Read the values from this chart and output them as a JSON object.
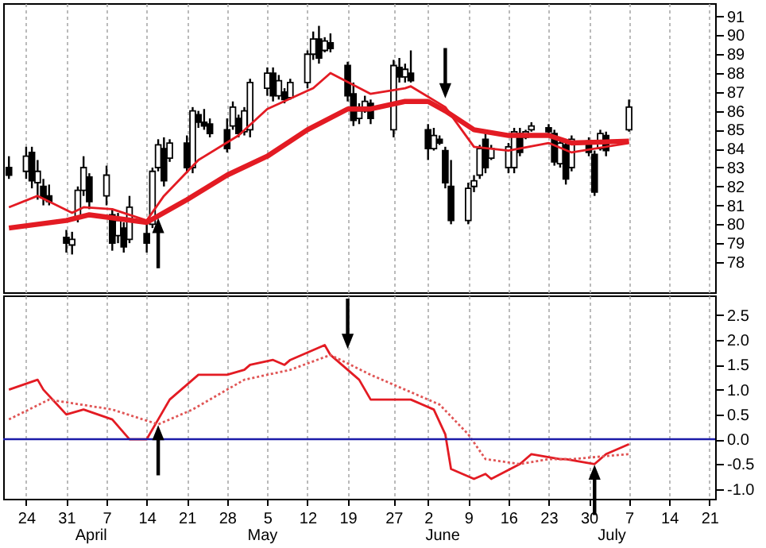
{
  "chart_data": [
    {
      "type": "candlestick",
      "x": [
        "--03-21",
        "--03-24",
        "--03-25",
        "--03-26",
        "--03-27",
        "--03-28",
        "--03-31",
        "--04-01",
        "--04-02",
        "--04-03",
        "--04-04",
        "--04-07",
        "--04-08",
        "--04-09",
        "--04-10",
        "--04-11",
        "--04-14",
        "--04-15",
        "--04-16",
        "--04-17",
        "--04-18",
        "--04-21",
        "--04-22",
        "--04-23",
        "--04-24",
        "--04-25",
        "--04-28",
        "--04-29",
        "--04-30",
        "--05-01",
        "--05-02",
        "--05-05",
        "--05-06",
        "--05-07",
        "--05-08",
        "--05-09",
        "--05-12",
        "--05-13",
        "--05-14",
        "--05-15",
        "--05-16",
        "--05-19",
        "--05-20",
        "--05-21",
        "--05-22",
        "--05-23",
        "--05-27",
        "--05-28",
        "--05-29",
        "--05-30",
        "--06-02",
        "--06-03",
        "--06-04",
        "--06-05",
        "--06-06",
        "--06-09",
        "--06-10",
        "--06-11",
        "--06-12",
        "--06-13",
        "--06-16",
        "--06-17",
        "--06-18",
        "--06-19",
        "--06-20",
        "--06-23",
        "--06-24",
        "--06-25",
        "--06-26",
        "--06-27",
        "--06-30",
        "--07-01",
        "--07-02",
        "--07-03",
        "--07-07"
      ],
      "ohlc": [
        [
          83.0,
          83.6,
          82.4,
          82.6
        ],
        [
          82.8,
          84.1,
          82.4,
          83.6
        ],
        [
          83.8,
          84.1,
          81.9,
          82.3
        ],
        [
          82.2,
          83.4,
          81.3,
          82.8
        ],
        [
          82.0,
          82.4,
          81.0,
          81.4
        ],
        [
          81.5,
          82.1,
          81.0,
          81.2
        ],
        [
          79.3,
          79.7,
          78.5,
          79.0
        ],
        [
          78.9,
          79.6,
          78.4,
          79.2
        ],
        [
          80.4,
          82.0,
          80.1,
          81.8
        ],
        [
          81.8,
          83.6,
          81.5,
          83.0
        ],
        [
          82.5,
          82.7,
          80.8,
          81.2
        ],
        [
          81.5,
          83.1,
          81.0,
          82.6
        ],
        [
          80.5,
          80.8,
          78.6,
          79.0
        ],
        [
          79.4,
          80.6,
          79.0,
          80.2
        ],
        [
          79.8,
          80.1,
          78.5,
          78.8
        ],
        [
          79.2,
          81.5,
          79.0,
          80.9
        ],
        [
          79.5,
          80.0,
          78.5,
          79.0
        ],
        [
          80.0,
          83.0,
          79.8,
          82.8
        ],
        [
          83.0,
          84.5,
          82.8,
          84.2
        ],
        [
          84.0,
          84.6,
          82.0,
          82.3
        ],
        [
          83.5,
          84.5,
          83.3,
          84.3
        ],
        [
          84.3,
          84.7,
          82.7,
          83.0
        ],
        [
          83.0,
          86.2,
          82.7,
          86.0
        ],
        [
          85.8,
          86.0,
          85.1,
          85.4
        ],
        [
          85.4,
          86.1,
          85.0,
          85.2
        ],
        [
          85.3,
          85.6,
          84.6,
          84.8
        ],
        [
          85.0,
          85.6,
          83.8,
          84.0
        ],
        [
          85.2,
          86.5,
          85.0,
          86.2
        ],
        [
          85.6,
          85.8,
          84.6,
          84.8
        ],
        [
          84.9,
          86.2,
          84.7,
          86.0
        ],
        [
          85.0,
          87.7,
          84.6,
          87.5
        ],
        [
          87.2,
          88.3,
          86.8,
          88.0
        ],
        [
          88.0,
          88.3,
          86.5,
          86.8
        ],
        [
          86.8,
          87.9,
          86.6,
          87.6
        ],
        [
          87.0,
          87.2,
          86.4,
          86.6
        ],
        [
          86.7,
          87.7,
          86.6,
          87.5
        ],
        [
          87.5,
          89.2,
          87.2,
          89.0
        ],
        [
          89.0,
          90.2,
          88.7,
          89.8
        ],
        [
          89.8,
          90.5,
          88.5,
          88.8
        ],
        [
          89.2,
          89.9,
          89.1,
          89.7
        ],
        [
          89.6,
          90.1,
          89.1,
          89.3
        ],
        [
          88.4,
          88.6,
          86.5,
          86.8
        ],
        [
          86.9,
          87.5,
          85.2,
          85.5
        ],
        [
          85.6,
          86.4,
          85.3,
          86.0
        ],
        [
          86.0,
          86.8,
          85.9,
          86.5
        ],
        [
          86.4,
          86.6,
          85.3,
          85.6
        ],
        [
          85.0,
          88.7,
          84.6,
          88.4
        ],
        [
          88.3,
          88.8,
          87.5,
          87.8
        ],
        [
          87.8,
          88.5,
          87.5,
          88.2
        ],
        [
          88.0,
          89.2,
          87.5,
          87.6
        ],
        [
          85.0,
          85.3,
          83.4,
          84.0
        ],
        [
          84.0,
          85.1,
          83.9,
          84.7
        ],
        [
          84.5,
          84.7,
          84.2,
          84.3
        ],
        [
          83.9,
          84.1,
          81.9,
          82.2
        ],
        [
          82.0,
          83.4,
          80.0,
          80.2
        ],
        [
          80.2,
          82.2,
          80.0,
          81.9
        ],
        [
          82.0,
          82.6,
          81.7,
          82.3
        ],
        [
          82.6,
          84.2,
          82.4,
          84.0
        ],
        [
          84.5,
          84.9,
          82.7,
          83.0
        ],
        [
          83.5,
          84.2,
          83.4,
          84.0
        ],
        [
          83.0,
          84.3,
          82.7,
          84.1
        ],
        [
          83.0,
          85.1,
          82.7,
          84.9
        ],
        [
          84.8,
          85.1,
          83.6,
          83.8
        ],
        [
          84.6,
          85.0,
          84.5,
          84.9
        ],
        [
          85.0,
          85.4,
          84.9,
          85.2
        ],
        [
          85.1,
          85.3,
          84.7,
          84.9
        ],
        [
          84.8,
          85.0,
          83.1,
          83.3
        ],
        [
          83.2,
          84.5,
          83.0,
          84.3
        ],
        [
          84.2,
          84.5,
          82.1,
          82.4
        ],
        [
          83.0,
          84.7,
          82.8,
          84.5
        ],
        [
          84.4,
          84.6,
          83.6,
          83.8
        ],
        [
          83.7,
          83.9,
          81.5,
          81.7
        ],
        [
          84.0,
          85.0,
          83.9,
          84.8
        ],
        [
          84.7,
          84.9,
          83.6,
          83.9
        ],
        [
          85.0,
          86.6,
          84.9,
          86.2
        ]
      ],
      "series": [
        {
          "type": "line",
          "color": "#e31b23",
          "x": [
            "--03-21",
            "--03-26",
            "--03-28",
            "--04-01",
            "--04-03",
            "--04-08",
            "--04-14",
            "--04-17",
            "--04-23",
            "--04-30",
            "--05-05",
            "--05-13",
            "--05-16",
            "--05-23",
            "--05-29",
            "--05-30",
            "--06-05",
            "--06-10",
            "--06-16",
            "--06-23",
            "--06-27",
            "--07-07"
          ],
          "values": [
            80.9,
            81.5,
            81.2,
            80.6,
            80.9,
            80.8,
            80.2,
            81.5,
            83.4,
            84.7,
            86.1,
            87.2,
            88.0,
            86.9,
            87.2,
            87.3,
            86.2,
            84.1,
            83.9,
            84.3,
            83.8,
            84.3
          ]
        },
        {
          "type": "line",
          "color": "#e31b23",
          "x": [
            "--03-21",
            "--03-31",
            "--04-04",
            "--04-14",
            "--04-21",
            "--04-28",
            "--05-05",
            "--05-12",
            "--05-19",
            "--05-23",
            "--05-29",
            "--06-02",
            "--06-05",
            "--06-10",
            "--06-16",
            "--06-23",
            "--06-27",
            "--07-07"
          ],
          "values": [
            79.8,
            80.2,
            80.5,
            80.1,
            81.3,
            82.6,
            83.6,
            85.0,
            86.1,
            86.1,
            86.5,
            86.5,
            86.0,
            85.0,
            84.7,
            84.7,
            84.3,
            84.4
          ]
        }
      ],
      "xlim": [
        "--03-20",
        "--07-22"
      ],
      "xticks": [
        "--03-24",
        "--03-31",
        "--04-07",
        "--04-14",
        "--04-21",
        "--04-28",
        "--05-05",
        "--05-12",
        "--05-19",
        "--05-27",
        "--06-02",
        "--06-09",
        "--06-16",
        "--06-23",
        "--06-30",
        "--07-07",
        "--07-14",
        "--07-21"
      ],
      "ylim": [
        76.4,
        91.7
      ],
      "yticks": [
        78,
        79,
        80,
        81,
        82,
        83,
        84,
        85,
        86,
        87,
        88,
        89,
        90,
        91
      ],
      "grid": "x",
      "tick_labels": "y"
    },
    {
      "type": "line",
      "series": [
        {
          "color": "#e31b23",
          "line_style": "solid",
          "x": [
            "--03-21",
            "--03-26",
            "--03-27",
            "--03-31",
            "--04-03",
            "--04-08",
            "--04-11",
            "--04-14",
            "--04-16",
            "--04-18",
            "--04-23",
            "--04-28",
            "--05-01",
            "--05-02",
            "--05-06",
            "--05-08",
            "--05-09",
            "--05-13",
            "--05-15",
            "--05-16",
            "--05-21",
            "--05-23",
            "--05-29",
            "--05-30",
            "--06-03",
            "--06-05",
            "--06-06",
            "--06-10",
            "--06-12",
            "--06-13",
            "--06-18",
            "--06-20",
            "--06-25",
            "--06-26",
            "--07-01",
            "--07-03",
            "--07-07"
          ],
          "values": [
            1.0,
            1.2,
            1.0,
            0.5,
            0.6,
            0.4,
            0.0,
            0.0,
            0.4,
            0.8,
            1.3,
            1.3,
            1.4,
            1.5,
            1.6,
            1.5,
            1.6,
            1.8,
            1.9,
            1.7,
            1.2,
            0.8,
            0.8,
            0.8,
            0.6,
            0.1,
            -0.6,
            -0.8,
            -0.7,
            -0.8,
            -0.5,
            -0.3,
            -0.4,
            -0.4,
            -0.5,
            -0.3,
            -0.1
          ]
        },
        {
          "color": "#e05555",
          "line_style": "dotted",
          "x": [
            "--03-21",
            "--03-28",
            "--04-08",
            "--04-16",
            "--04-22",
            "--05-01",
            "--05-09",
            "--05-16",
            "--05-23",
            "--05-29",
            "--06-04",
            "--06-09",
            "--06-12",
            "--06-18",
            "--06-23",
            "--06-27",
            "--07-07"
          ],
          "values": [
            0.4,
            0.8,
            0.6,
            0.3,
            0.6,
            1.2,
            1.4,
            1.7,
            1.3,
            1.0,
            0.7,
            0.1,
            -0.4,
            -0.5,
            -0.4,
            -0.4,
            -0.3
          ]
        }
      ],
      "xlim": [
        "--03-20",
        "--07-22"
      ],
      "xticks": [
        {
          "value": "--03-24",
          "label": "24"
        },
        {
          "value": "--03-31",
          "label": "31"
        },
        {
          "value": "--04-07",
          "label": "7"
        },
        {
          "value": "--04-14",
          "label": "14"
        },
        {
          "value": "--04-21",
          "label": "21"
        },
        {
          "value": "--04-28",
          "label": "28"
        },
        {
          "value": "--05-05",
          "label": "5"
        },
        {
          "value": "--05-12",
          "label": "12"
        },
        {
          "value": "--05-19",
          "label": "19"
        },
        {
          "value": "--05-27",
          "label": "27"
        },
        {
          "value": "--06-02",
          "label": "2"
        },
        {
          "value": "--06-09",
          "label": "9"
        },
        {
          "value": "--06-16",
          "label": "16"
        },
        {
          "value": "--06-23",
          "label": "23"
        },
        {
          "value": "--06-30",
          "label": "30"
        },
        {
          "value": "--07-07",
          "label": "7"
        },
        {
          "value": "--07-14",
          "label": "14"
        },
        {
          "value": "--07-21",
          "label": "21"
        }
      ],
      "ylim": [
        -1.2,
        2.9
      ],
      "yticks": [
        {
          "value": -1,
          "label": "-1.0"
        },
        {
          "value": -0.5,
          "label": "-0.5"
        },
        {
          "value": 0,
          "label": "0.0"
        },
        {
          "value": 0.5,
          "label": "0.5"
        },
        {
          "value": 1,
          "label": "1.0"
        },
        {
          "value": 1.5,
          "label": "1.5"
        },
        {
          "value": 2,
          "label": "2.0"
        },
        {
          "value": 2.5,
          "label": "2.5"
        }
      ],
      "grid": "x",
      "ref_lines": [
        {
          "axis": "y",
          "value": 0,
          "color": "#1c1ca8"
        }
      ],
      "annotations": [
        "April",
        "May",
        "June",
        "July"
      ]
    }
  ]
}
